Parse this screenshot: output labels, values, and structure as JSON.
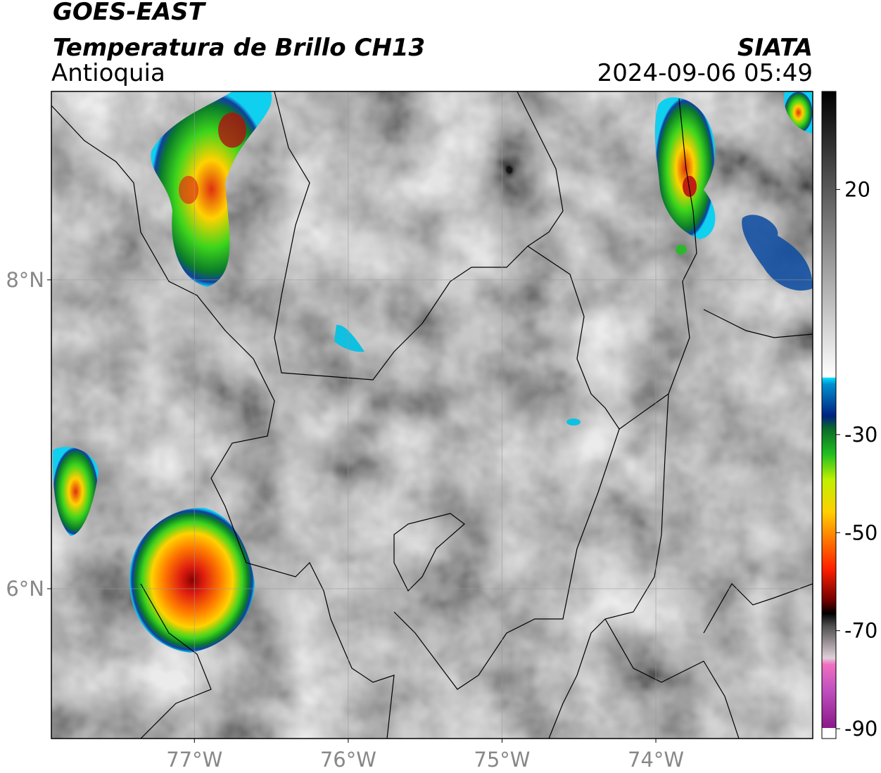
{
  "header": {
    "title": "GOES-EAST",
    "subtitle": "Temperatura de Brillo CH13",
    "region": "Antioquia",
    "source": "SIATA",
    "datetime": "2024-09-06 05:49"
  },
  "map": {
    "xlim": [
      -77.93,
      -72.98
    ],
    "ylim": [
      5.03,
      9.22
    ],
    "xticks": [
      {
        "value": -77,
        "label": "77°W"
      },
      {
        "value": -76,
        "label": "76°W"
      },
      {
        "value": -75,
        "label": "75°W"
      },
      {
        "value": -74,
        "label": "74°W"
      }
    ],
    "yticks": [
      {
        "value": 8,
        "label": "8°N"
      },
      {
        "value": 6,
        "label": "6°N"
      }
    ]
  },
  "colorbar": {
    "lim": [
      -92,
      40
    ],
    "ticks": [
      20,
      -30,
      -50,
      -70,
      -90
    ]
  }
}
